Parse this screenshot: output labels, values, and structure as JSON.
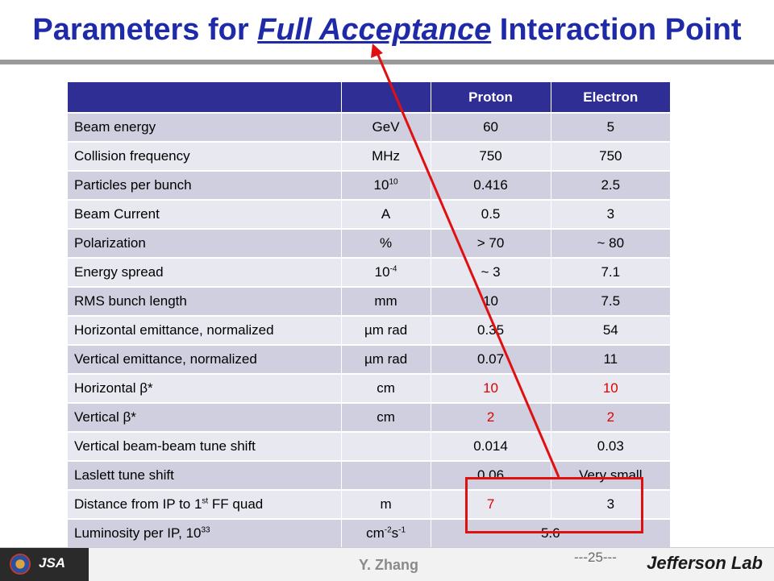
{
  "title": {
    "before": "Parameters for ",
    "emphasis": "Full Acceptance",
    "after": " Interaction Point"
  },
  "table": {
    "headers": [
      "",
      "",
      "Proton",
      "Electron"
    ],
    "rows": [
      {
        "name": "Beam energy",
        "unit": "GeV",
        "proton": "60",
        "electron": "5"
      },
      {
        "name": "Collision frequency",
        "unit": "MHz",
        "proton": "750",
        "electron": "750"
      },
      {
        "name": "Particles per bunch",
        "unit_base": "10",
        "unit_sup": "10",
        "proton": "0.416",
        "electron": "2.5"
      },
      {
        "name": "Beam Current",
        "unit": "A",
        "proton": "0.5",
        "electron": "3"
      },
      {
        "name": "Polarization",
        "unit": "%",
        "proton": "> 70",
        "electron": "~ 80"
      },
      {
        "name": "Energy spread",
        "unit_base": "10",
        "unit_sup": "-4",
        "proton": "~ 3",
        "electron": "7.1"
      },
      {
        "name": "RMS bunch length",
        "unit": "mm",
        "proton": "10",
        "electron": "7.5"
      },
      {
        "name": "Horizontal emittance, normalized",
        "unit": "µm rad",
        "proton": "0.35",
        "electron": "54"
      },
      {
        "name": "Vertical emittance, normalized",
        "unit": "µm rad",
        "proton": "0.07",
        "electron": "11"
      },
      {
        "name": "Horizontal β*",
        "unit": "cm",
        "proton": "10",
        "electron": "10"
      },
      {
        "name": "Vertical β*",
        "unit": "cm",
        "proton": "2",
        "electron": "2"
      },
      {
        "name": "Vertical beam-beam tune shift",
        "unit": "",
        "proton": "0.014",
        "electron": "0.03"
      },
      {
        "name": "Laslett tune shift",
        "unit": "",
        "proton": "0.06",
        "electron": "Very small"
      },
      {
        "name_base": "Distance from IP to 1",
        "name_sup": "st",
        "name_after": " FF quad",
        "unit": "m",
        "proton": "7",
        "electron": "3"
      },
      {
        "name_base": "Luminosity per IP, 10",
        "name_sup": "33",
        "unit_a": "cm",
        "unit_a_sup": "-2",
        "unit_b": "s",
        "unit_b_sup": "-1",
        "combined": "5.6"
      }
    ]
  },
  "footer": {
    "logo_text": "JSA",
    "presenter": "Y. Zhang",
    "page": "---25---",
    "lab_logo": "Jefferson Lab"
  },
  "colors": {
    "title": "#1e2aa8",
    "header_bg": "#2e2e94",
    "row_odd": "#cfcfe0",
    "row_even": "#e8e8f1",
    "highlight": "#e01010"
  }
}
